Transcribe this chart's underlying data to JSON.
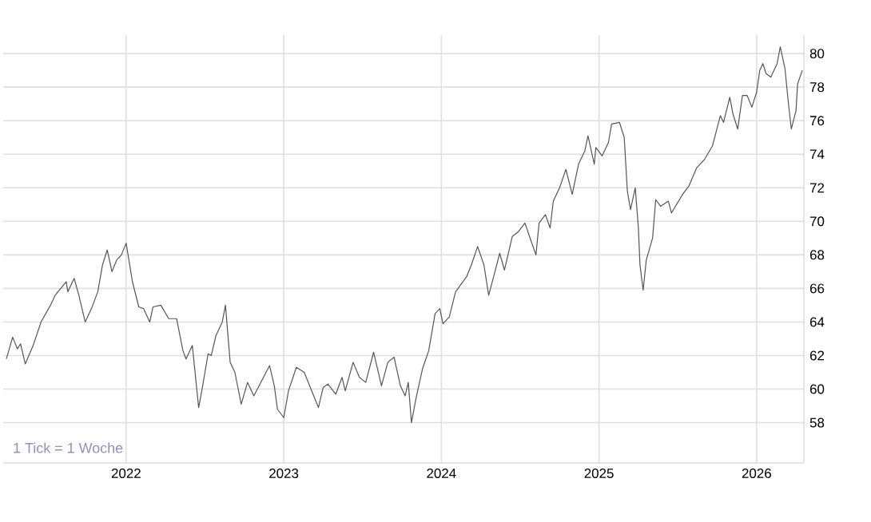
{
  "chart_data": {
    "type": "line",
    "x": [
      2021.24,
      2021.28,
      2021.31,
      2021.33,
      2021.36,
      2021.41,
      2021.46,
      2021.52,
      2021.55,
      2021.62,
      2021.63,
      2021.67,
      2021.7,
      2021.74,
      2021.78,
      2021.82,
      2021.85,
      2021.88,
      2021.91,
      2021.94,
      2021.97,
      2022.0,
      2022.04,
      2022.08,
      2022.11,
      2022.15,
      2022.17,
      2022.22,
      2022.27,
      2022.32,
      2022.36,
      2022.38,
      2022.42,
      2022.46,
      2022.48,
      2022.52,
      2022.54,
      2022.57,
      2022.61,
      2022.63,
      2022.66,
      2022.69,
      2022.73,
      2022.77,
      2022.81,
      2022.86,
      2022.91,
      2022.94,
      2022.96,
      2023.0,
      2023.03,
      2023.08,
      2023.13,
      2023.22,
      2023.25,
      2023.28,
      2023.33,
      2023.37,
      2023.39,
      2023.44,
      2023.48,
      2023.52,
      2023.57,
      2023.62,
      2023.66,
      2023.7,
      2023.74,
      2023.77,
      2023.79,
      2023.81,
      2023.84,
      2023.88,
      2023.92,
      2023.96,
      2023.99,
      2024.01,
      2024.05,
      2024.09,
      2024.16,
      2024.19,
      2024.23,
      2024.27,
      2024.3,
      2024.34,
      2024.37,
      2024.4,
      2024.45,
      2024.49,
      2024.53,
      2024.57,
      2024.6,
      2024.62,
      2024.66,
      2024.69,
      2024.71,
      2024.75,
      2024.79,
      2024.83,
      2024.87,
      2024.91,
      2024.93,
      2024.97,
      2024.98,
      2025.02,
      2025.06,
      2025.08,
      2025.13,
      2025.16,
      2025.18,
      2025.2,
      2025.23,
      2025.25,
      2025.26,
      2025.28,
      2025.3,
      2025.34,
      2025.36,
      2025.39,
      2025.44,
      2025.46,
      2025.53,
      2025.57,
      2025.62,
      2025.67,
      2025.72,
      2025.77,
      2025.79,
      2025.83,
      2025.85,
      2025.88,
      2025.91,
      2025.94,
      2025.97,
      2026.0,
      2026.02,
      2026.04,
      2026.06,
      2026.09,
      2026.13,
      2026.15,
      2026.18,
      2026.2,
      2026.22,
      2026.25,
      2026.26,
      2026.29
    ],
    "series": [
      {
        "color": "#555555",
        "values": [
          61.8,
          63.1,
          62.4,
          62.7,
          61.5,
          62.6,
          64.0,
          65.0,
          65.6,
          66.4,
          65.8,
          66.6,
          65.6,
          64.0,
          64.8,
          65.8,
          67.4,
          68.3,
          67.0,
          67.7,
          68.0,
          68.7,
          66.4,
          64.9,
          64.8,
          64.0,
          64.9,
          65.0,
          64.2,
          64.2,
          62.3,
          61.8,
          62.6,
          58.9,
          59.9,
          62.1,
          62.0,
          63.2,
          64.0,
          65.0,
          61.6,
          61.0,
          59.1,
          60.4,
          59.6,
          60.5,
          61.4,
          60.2,
          58.8,
          58.3,
          59.9,
          61.3,
          61.0,
          58.9,
          60.1,
          60.3,
          59.7,
          60.7,
          59.9,
          61.6,
          60.7,
          60.4,
          62.2,
          60.2,
          61.6,
          61.9,
          60.2,
          59.6,
          60.4,
          58.0,
          59.5,
          61.2,
          62.3,
          64.5,
          64.8,
          63.9,
          64.3,
          65.8,
          66.7,
          67.4,
          68.5,
          67.4,
          65.6,
          67.0,
          68.1,
          67.1,
          69.1,
          69.4,
          69.9,
          68.8,
          68.0,
          69.9,
          70.4,
          69.6,
          71.2,
          72.0,
          73.1,
          71.6,
          73.4,
          74.2,
          75.1,
          73.4,
          74.4,
          73.9,
          74.7,
          75.8,
          75.9,
          75.0,
          71.8,
          70.7,
          72.0,
          69.6,
          67.4,
          65.9,
          67.7,
          69.0,
          71.3,
          70.9,
          71.2,
          70.5,
          71.6,
          72.1,
          73.2,
          73.7,
          74.5,
          76.3,
          75.9,
          77.4,
          76.4,
          75.5,
          77.5,
          77.5,
          76.8,
          77.7,
          79.0,
          79.4,
          78.8,
          78.6,
          79.4,
          80.4,
          79.1,
          77.2,
          75.5,
          76.6,
          78.2,
          79.0
        ]
      }
    ],
    "xlim": [
      2021.22,
      2026.3
    ],
    "ylim": [
      55.6,
      81.1
    ],
    "xticks": [
      2022,
      2023,
      2024,
      2025,
      2026
    ],
    "yticks": [
      58,
      60,
      62,
      64,
      66,
      68,
      70,
      72,
      74,
      76,
      78,
      80
    ],
    "grid": true,
    "marker": "none",
    "line_style": "solid",
    "annotations": [
      "1 Tick = 1 Woche"
    ]
  }
}
